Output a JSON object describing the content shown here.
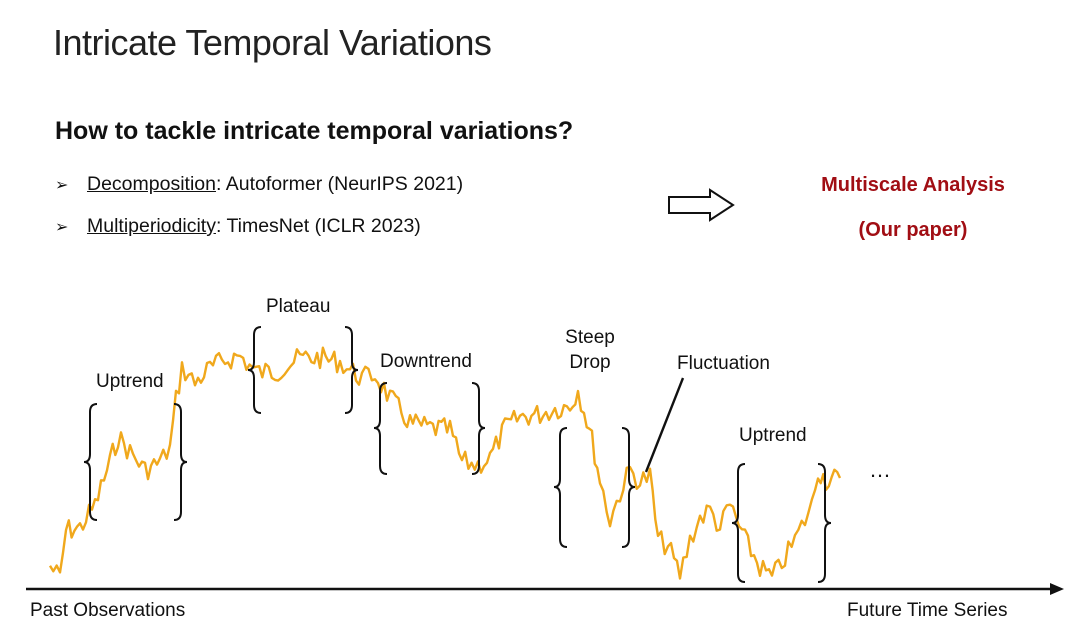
{
  "slide": {
    "title": "Intricate Temporal Variations",
    "question": "How to tackle intricate temporal variations?"
  },
  "bullets": [
    {
      "marker": "➢",
      "term": "Decomposition",
      "rest": ": Autoformer (NeurIPS 2021)"
    },
    {
      "marker": "➢",
      "term": "Multiperiodicity",
      "rest": ": TimesNet (ICLR 2023)"
    }
  ],
  "result": {
    "line1": "Multiscale Analysis",
    "line2": "(Our paper)"
  },
  "annotations": {
    "uptrend_1": "Uptrend",
    "plateau": "Plateau",
    "downtrend": "Downtrend",
    "steep_line1": "Steep",
    "steep_line2": "Drop",
    "fluctuation": "Fluctuation",
    "uptrend_2": "Uptrend",
    "ellipsis": "…"
  },
  "axis": {
    "past": "Past Observations",
    "future": "Future Time Series"
  },
  "colors": {
    "series": "#f0a81c",
    "accent": "#a10e14"
  }
}
